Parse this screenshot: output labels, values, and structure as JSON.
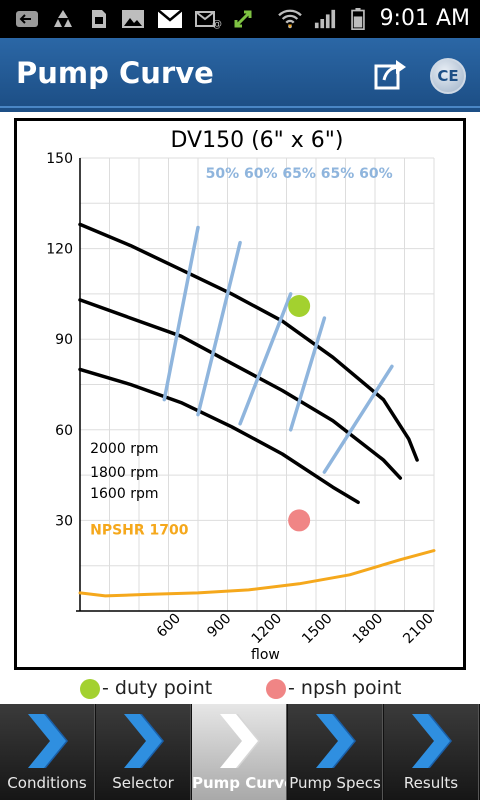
{
  "status_bar": {
    "time": "9:01 AM"
  },
  "header": {
    "title": "Pump Curve"
  },
  "chart_data": {
    "type": "line",
    "title": "DV150 (6\" x 6\")",
    "xlabel": "flow",
    "ylabel": "",
    "xlim": [
      0,
      2100
    ],
    "ylim": [
      0,
      150
    ],
    "x_ticks": [
      "600",
      "900",
      "1200",
      "1500",
      "1800",
      "2100"
    ],
    "y_ticks": [
      "30",
      "60",
      "90",
      "120",
      "150"
    ],
    "grid": true,
    "efficiency_labels": "50% 60% 65% 65% 60%",
    "series": [
      {
        "name": "2000 rpm",
        "color": "#000000",
        "x": [
          0,
          300,
          600,
          900,
          1200,
          1500,
          1800,
          1950,
          2000
        ],
        "y": [
          128,
          121,
          113,
          105,
          96,
          84,
          70,
          57,
          50
        ]
      },
      {
        "name": "1800 rpm",
        "color": "#000000",
        "x": [
          0,
          300,
          600,
          900,
          1200,
          1500,
          1800,
          1900
        ],
        "y": [
          103,
          97,
          91,
          82,
          73,
          63,
          50,
          44
        ]
      },
      {
        "name": "1600 rpm",
        "color": "#000000",
        "x": [
          0,
          300,
          600,
          900,
          1200,
          1500,
          1650
        ],
        "y": [
          80,
          75,
          69,
          61,
          52,
          41,
          36
        ]
      },
      {
        "name": "NPSHR 1700",
        "color": "#f5a81c",
        "x": [
          0,
          150,
          400,
          700,
          1000,
          1300,
          1600,
          1900,
          2100
        ],
        "y": [
          6,
          5,
          5.5,
          6,
          7,
          9,
          12,
          17,
          20
        ]
      }
    ],
    "efficiency_lines": [
      {
        "label": "50%",
        "x": [
          500,
          700
        ],
        "y": [
          70,
          127
        ]
      },
      {
        "label": "60%",
        "x": [
          700,
          950
        ],
        "y": [
          65,
          122
        ]
      },
      {
        "label": "65%",
        "x": [
          950,
          1250
        ],
        "y": [
          62,
          105
        ]
      },
      {
        "label": "65%",
        "x": [
          1250,
          1450
        ],
        "y": [
          60,
          97
        ]
      },
      {
        "label": "60%",
        "x": [
          1450,
          1850
        ],
        "y": [
          46,
          81
        ]
      }
    ],
    "points": [
      {
        "name": "duty point",
        "x": 1300,
        "y": 101,
        "color": "#a3d12f"
      },
      {
        "name": "npsh point",
        "x": 1300,
        "y": 30,
        "color": "#f08585"
      }
    ]
  },
  "legend": {
    "duty_label": "- duty point",
    "npsh_label": "- npsh point",
    "duty_color": "#a3d12f",
    "npsh_color": "#f08585"
  },
  "nav": {
    "tabs": [
      {
        "label": "Conditions",
        "active": false
      },
      {
        "label": "Selector",
        "active": false
      },
      {
        "label": "Pump Curve",
        "active": true
      },
      {
        "label": "Pump Specs",
        "active": false
      },
      {
        "label": "Results",
        "active": false
      }
    ]
  }
}
